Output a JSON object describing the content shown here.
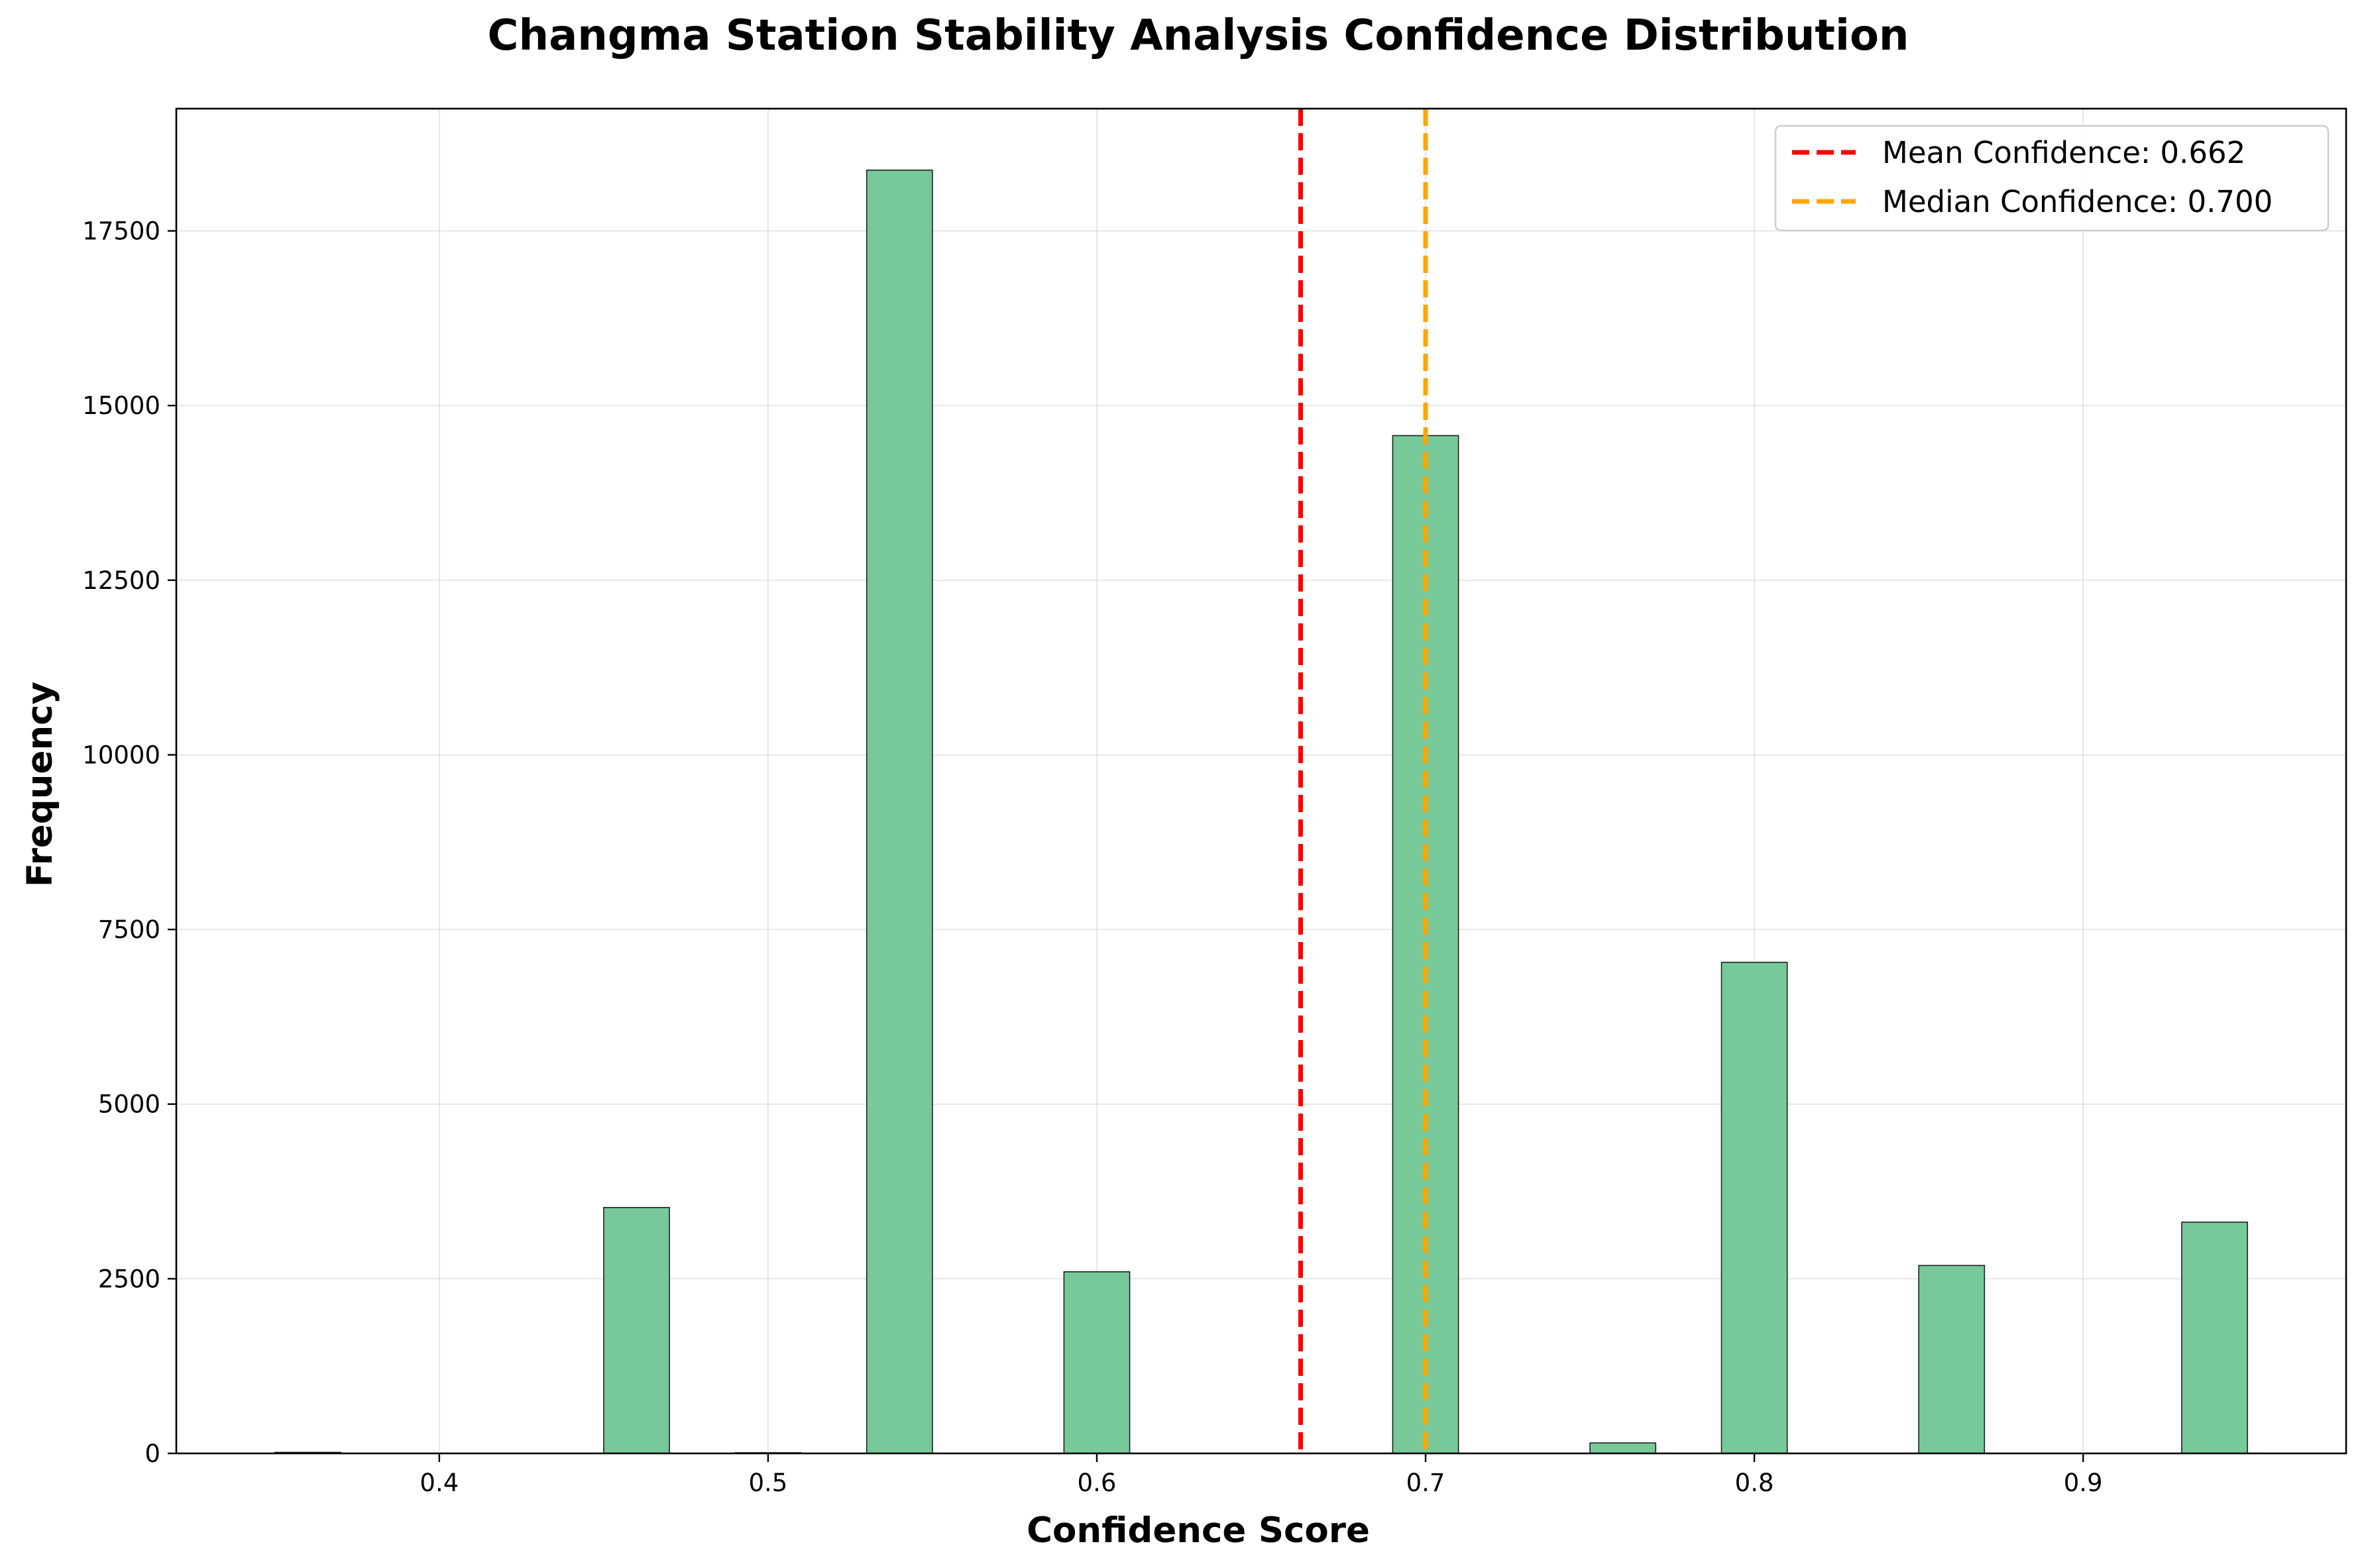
{
  "chart_data": {
    "type": "bar",
    "title": "Changma Station Stability Analysis Confidence Distribution",
    "xlabel": "Confidence Score",
    "ylabel": "Frequency",
    "xlim": [
      0.32,
      0.98
    ],
    "ylim": [
      0,
      19250
    ],
    "xticks": [
      0.4,
      0.5,
      0.6,
      0.7,
      0.8,
      0.9
    ],
    "xtick_labels": [
      "0.4",
      "0.5",
      "0.6",
      "0.7",
      "0.8",
      "0.9"
    ],
    "yticks": [
      0,
      2500,
      5000,
      7500,
      10000,
      12500,
      15000,
      17500
    ],
    "ytick_labels": [
      "0",
      "2500",
      "5000",
      "7500",
      "10000",
      "12500",
      "15000",
      "17500"
    ],
    "grid": true,
    "bar_color": "#77c99a",
    "bars": [
      {
        "x0": 0.35,
        "x1": 0.37,
        "value": 15
      },
      {
        "x0": 0.45,
        "x1": 0.47,
        "value": 3520
      },
      {
        "x0": 0.49,
        "x1": 0.51,
        "value": 10
      },
      {
        "x0": 0.53,
        "x1": 0.55,
        "value": 18370
      },
      {
        "x0": 0.59,
        "x1": 0.61,
        "value": 2600
      },
      {
        "x0": 0.69,
        "x1": 0.71,
        "value": 14570
      },
      {
        "x0": 0.75,
        "x1": 0.77,
        "value": 150
      },
      {
        "x0": 0.79,
        "x1": 0.81,
        "value": 7030
      },
      {
        "x0": 0.85,
        "x1": 0.87,
        "value": 2690
      },
      {
        "x0": 0.93,
        "x1": 0.95,
        "value": 3310
      }
    ],
    "reference_lines": [
      {
        "label": "Mean Confidence: 0.662",
        "x": 0.662,
        "color": "#ff0000"
      },
      {
        "label": "Median Confidence: 0.700",
        "x": 0.7,
        "color": "#ffa500"
      }
    ],
    "legend_position": "top-right"
  }
}
